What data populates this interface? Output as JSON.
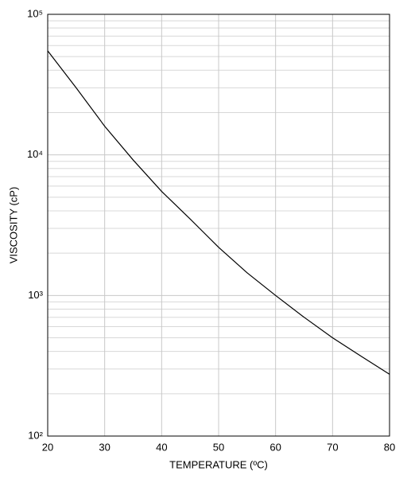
{
  "chart_data": {
    "type": "line",
    "x_label": "TEMPERATURE (ºC)",
    "y_label": "VISCOSITY (cP)",
    "x": [
      20,
      25,
      30,
      35,
      40,
      45,
      50,
      55,
      60,
      65,
      70,
      75,
      80
    ],
    "series": [
      {
        "color": "#000000",
        "values": [
          55000,
          30000,
          16000,
          9200,
          5500,
          3500,
          2200,
          1450,
          1000,
          700,
          500,
          370,
          275
        ]
      }
    ],
    "xlim": [
      20,
      80
    ],
    "xticks": [
      20,
      30,
      40,
      50,
      60,
      70,
      80
    ],
    "ylim": [
      100,
      100000
    ],
    "yticks": [
      {
        "value": 100,
        "label": "10²"
      },
      {
        "value": 1000,
        "label": "10³"
      },
      {
        "value": 10000,
        "label": "10⁴"
      },
      {
        "value": 100000,
        "label": "10⁵"
      }
    ],
    "y_scale": "log",
    "grid": true,
    "minor_grid": true
  }
}
